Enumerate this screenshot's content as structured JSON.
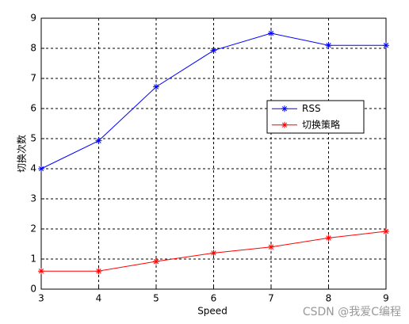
{
  "chart_data": {
    "type": "line",
    "x_label": "Speed",
    "y_label": "切换次数",
    "x": [
      3,
      4,
      5,
      6,
      7,
      8,
      9
    ],
    "series": [
      {
        "name": "RSS",
        "color": "#0000ff",
        "values": [
          4.0,
          4.93,
          6.72,
          7.93,
          8.5,
          8.1,
          8.1
        ]
      },
      {
        "name": "切换策略",
        "color": "#ff0000",
        "values": [
          0.6,
          0.6,
          0.92,
          1.2,
          1.4,
          1.7,
          1.92
        ]
      }
    ],
    "xlim": [
      3,
      9
    ],
    "xticks": [
      3,
      4,
      5,
      6,
      7,
      8,
      9
    ],
    "ylim": [
      0,
      9
    ],
    "yticks": [
      0,
      1,
      2,
      3,
      4,
      5,
      6,
      7,
      8,
      9
    ],
    "grid": true,
    "legend": "right",
    "watermark": "CSDN @我爱C编程"
  }
}
